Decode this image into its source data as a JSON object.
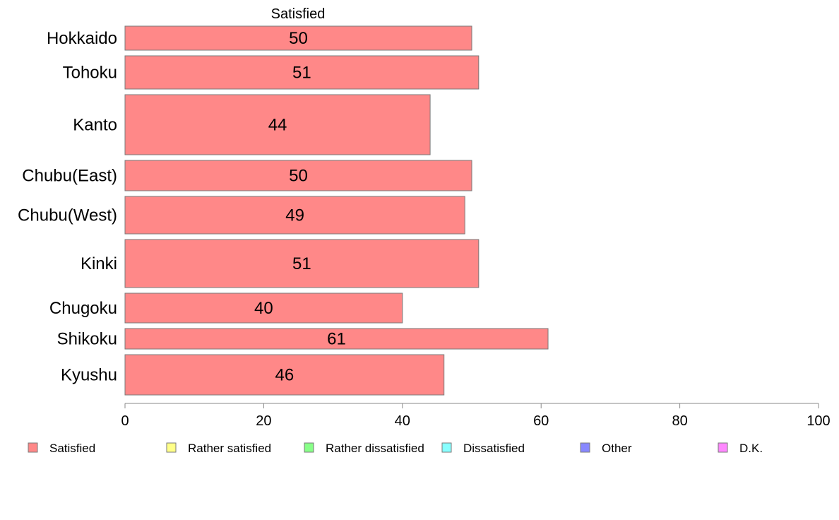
{
  "chart_data": {
    "type": "bar",
    "orientation": "horizontal",
    "title": "Satisfied",
    "categories": [
      "Hokkaido",
      "Tohoku",
      "Kanto",
      "Chubu(East)",
      "Chubu(West)",
      "Kinki",
      "Chugoku",
      "Shikoku",
      "Kyushu"
    ],
    "series": [
      {
        "name": "Satisfied",
        "values": [
          50,
          51,
          44,
          50,
          49,
          51,
          40,
          61,
          46
        ],
        "color": "#ff8888"
      }
    ],
    "data_labels": [
      "50",
      "51",
      "44",
      "50",
      "49",
      "51",
      "40",
      "61",
      "46"
    ],
    "xlim": [
      0,
      100
    ],
    "xticks": [
      0,
      20,
      40,
      60,
      80,
      100
    ],
    "xtick_labels": [
      "0",
      "20",
      "40",
      "60",
      "80",
      "100"
    ],
    "grid": false,
    "legend": {
      "placement": "bottom",
      "entries": [
        {
          "label": "Satisfied",
          "color": "#ff8888"
        },
        {
          "label": "Rather satisfied",
          "color": "#ffff88"
        },
        {
          "label": "Rather dissatisfied",
          "color": "#88ff88"
        },
        {
          "label": "Dissatisfied",
          "color": "#88ffff"
        },
        {
          "label": "Other",
          "color": "#8888ff"
        },
        {
          "label": "D.K.",
          "color": "#ff88ff"
        }
      ]
    }
  }
}
